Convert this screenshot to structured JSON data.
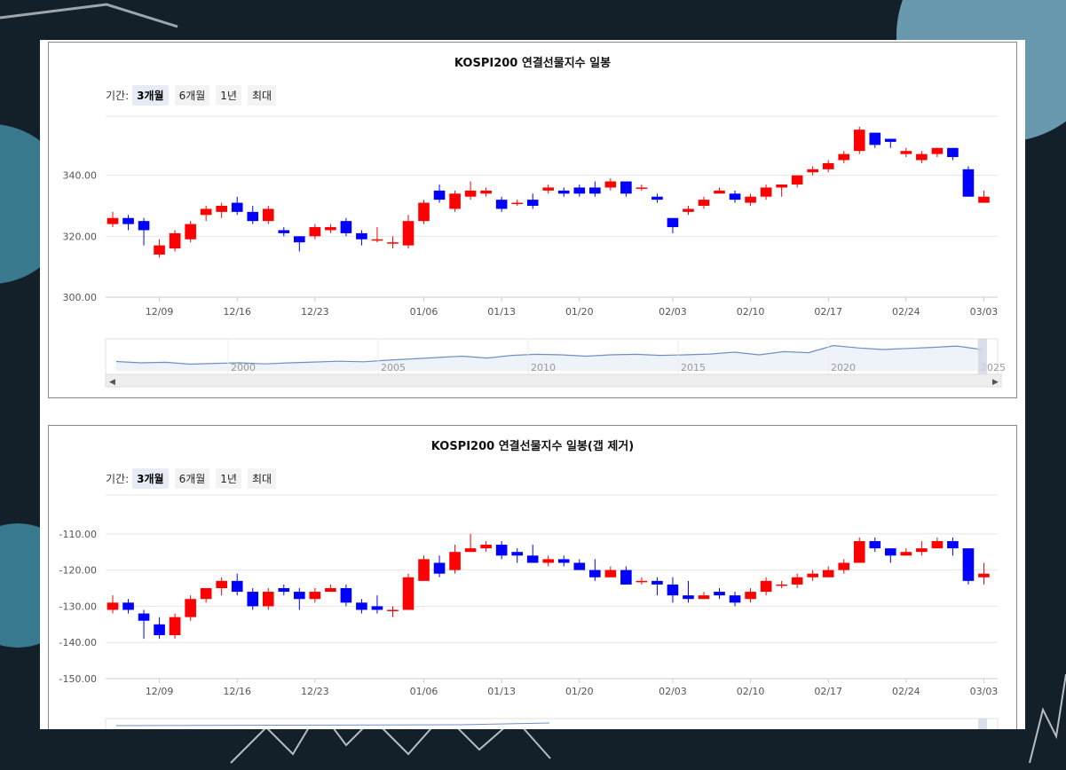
{
  "colors": {
    "up": "#ff0000",
    "down": "#0000ff",
    "grid": "#e6e6e6",
    "axis": "#666666",
    "navigator_line": "#6f8fc4",
    "navigator_fill": "#eef3fa"
  },
  "range_selector": {
    "label": "기간:",
    "buttons": [
      "3개월",
      "6개월",
      "1년",
      "최대"
    ],
    "selected": "3개월"
  },
  "charts": [
    {
      "title": "KOSPI200 연결선물지수 일봉"
    },
    {
      "title": "KOSPI200 연결선물지수 일봉(갭 제거)"
    }
  ],
  "chart_data": [
    {
      "type": "candlestick",
      "title": "KOSPI200 연결선물지수 일봉",
      "y_ticks": [
        "300.00",
        "320.00",
        "340.00"
      ],
      "ylim": [
        300,
        360
      ],
      "x_ticks": [
        "12/09",
        "12/16",
        "12/23",
        "01/06",
        "01/13",
        "01/20",
        "02/03",
        "02/10",
        "02/17",
        "02/24",
        "03/03"
      ],
      "x_tick_index": [
        3,
        8,
        13,
        20,
        25,
        30,
        36,
        41,
        46,
        51,
        56
      ],
      "navigator": {
        "labels": [
          "2000",
          "2005",
          "2010",
          "2015",
          "2020",
          "2025"
        ],
        "series": [
          0.35,
          0.3,
          0.32,
          0.25,
          0.28,
          0.3,
          0.26,
          0.3,
          0.33,
          0.36,
          0.34,
          0.4,
          0.45,
          0.5,
          0.55,
          0.48,
          0.58,
          0.62,
          0.6,
          0.55,
          0.6,
          0.62,
          0.58,
          0.6,
          0.63,
          0.7,
          0.6,
          0.72,
          0.68,
          0.95,
          0.86,
          0.8,
          0.84,
          0.88,
          0.93,
          0.8
        ]
      },
      "candles": [
        [
          324,
          326,
          328,
          323
        ],
        [
          326,
          324,
          327,
          322
        ],
        [
          325,
          322,
          326,
          317
        ],
        [
          314,
          317,
          319,
          313
        ],
        [
          316,
          321,
          322,
          315
        ],
        [
          319,
          324,
          325,
          318
        ],
        [
          327,
          329,
          330,
          325
        ],
        [
          328,
          330,
          331,
          326
        ],
        [
          331,
          328,
          333,
          327
        ],
        [
          328,
          325,
          330,
          324
        ],
        [
          325,
          329,
          330,
          324
        ],
        [
          322,
          321,
          323,
          320
        ],
        [
          320,
          318,
          320,
          315
        ],
        [
          320,
          323,
          324,
          319
        ],
        [
          322,
          323,
          324,
          321
        ],
        [
          325,
          321,
          326,
          320
        ],
        [
          321,
          319,
          322,
          317
        ],
        [
          319,
          319,
          323,
          318
        ],
        [
          318,
          318,
          320,
          316
        ],
        [
          317,
          325,
          327,
          316
        ],
        [
          325,
          331,
          332,
          324
        ],
        [
          335,
          332,
          337,
          331
        ],
        [
          329,
          334,
          335,
          328
        ],
        [
          333,
          335,
          338,
          332
        ],
        [
          334,
          335,
          336,
          333
        ],
        [
          332,
          329,
          333,
          328
        ],
        [
          331,
          331,
          332,
          330
        ],
        [
          332,
          330,
          334,
          329
        ],
        [
          335,
          336,
          337,
          334
        ],
        [
          335,
          334,
          336,
          333
        ],
        [
          336,
          334,
          337,
          333
        ],
        [
          336,
          334,
          338,
          333
        ],
        [
          336,
          338,
          339,
          335
        ],
        [
          338,
          334,
          338,
          333
        ],
        [
          336,
          336,
          337,
          335
        ],
        [
          333,
          332,
          334,
          331
        ],
        [
          326,
          323,
          326,
          321
        ],
        [
          328,
          329,
          330,
          327
        ],
        [
          330,
          332,
          333,
          329
        ],
        [
          334,
          335,
          336,
          334
        ],
        [
          334,
          332,
          335,
          331
        ],
        [
          331,
          333,
          334,
          330
        ],
        [
          333,
          336,
          337,
          332
        ],
        [
          336,
          337,
          337,
          333
        ],
        [
          337,
          340,
          340,
          336
        ],
        [
          341,
          342,
          343,
          340
        ],
        [
          342,
          344,
          345,
          341
        ],
        [
          345,
          347,
          348,
          344
        ],
        [
          348,
          355,
          356,
          347
        ],
        [
          354,
          350,
          354,
          349
        ],
        [
          352,
          351,
          352,
          349
        ],
        [
          347,
          348,
          349,
          346
        ],
        [
          345,
          347,
          348,
          344
        ],
        [
          347,
          349,
          349,
          346
        ],
        [
          349,
          346,
          349,
          345
        ],
        [
          342,
          333,
          343,
          333
        ],
        [
          331,
          333,
          335,
          331
        ]
      ]
    },
    {
      "type": "candlestick",
      "title": "KOSPI200 연결선물지수 일봉(갭 제거)",
      "y_ticks": [
        "-110.00",
        "-120.00",
        "-130.00",
        "-140.00",
        "-150.00"
      ],
      "ylim": [
        -150,
        -100
      ],
      "x_ticks": [
        "12/09",
        "12/16",
        "12/23",
        "01/06",
        "01/13",
        "01/20",
        "02/03",
        "02/10",
        "02/17",
        "02/24",
        "03/03"
      ],
      "x_tick_index": [
        3,
        8,
        13,
        20,
        25,
        30,
        36,
        41,
        46,
        51,
        56
      ],
      "candles": [
        [
          -131,
          -129,
          -127,
          -132
        ],
        [
          -129,
          -131,
          -128,
          -132
        ],
        [
          -132,
          -134,
          -131,
          -139
        ],
        [
          -135,
          -138,
          -133,
          -139
        ],
        [
          -138,
          -133,
          -132,
          -139
        ],
        [
          -133,
          -128,
          -127,
          -134
        ],
        [
          -128,
          -125,
          -125,
          -129
        ],
        [
          -125,
          -123,
          -122,
          -127
        ],
        [
          -123,
          -126,
          -121,
          -127
        ],
        [
          -126,
          -130,
          -125,
          -131
        ],
        [
          -130,
          -126,
          -125,
          -131
        ],
        [
          -125,
          -126,
          -124,
          -127
        ],
        [
          -126,
          -128,
          -125,
          -131
        ],
        [
          -128,
          -126,
          -125,
          -129
        ],
        [
          -126,
          -125,
          -124,
          -126
        ],
        [
          -125,
          -129,
          -124,
          -130
        ],
        [
          -129,
          -131,
          -128,
          -132
        ],
        [
          -130,
          -131,
          -127,
          -132
        ],
        [
          -131,
          -131,
          -130,
          -133
        ],
        [
          -131,
          -122,
          -121,
          -131
        ],
        [
          -123,
          -117,
          -116,
          -123
        ],
        [
          -118,
          -121,
          -116,
          -122
        ],
        [
          -120,
          -115,
          -113,
          -121
        ],
        [
          -115,
          -114,
          -110,
          -115
        ],
        [
          -114,
          -113,
          -112,
          -115
        ],
        [
          -113,
          -116,
          -112,
          -117
        ],
        [
          -115,
          -116,
          -114,
          -118
        ],
        [
          -116,
          -118,
          -113,
          -118
        ],
        [
          -118,
          -117,
          -116,
          -119
        ],
        [
          -117,
          -118,
          -116,
          -119
        ],
        [
          -118,
          -120,
          -117,
          -120
        ],
        [
          -120,
          -122,
          -117,
          -123
        ],
        [
          -122,
          -120,
          -119,
          -121
        ],
        [
          -120,
          -124,
          -119,
          -124
        ],
        [
          -123,
          -123,
          -122,
          -124
        ],
        [
          -123,
          -124,
          -122,
          -127
        ],
        [
          -124,
          -127,
          -122,
          -129
        ],
        [
          -127,
          -128,
          -123,
          -129
        ],
        [
          -128,
          -127,
          -126,
          -128
        ],
        [
          -126,
          -127,
          -125,
          -128
        ],
        [
          -127,
          -129,
          -126,
          -130
        ],
        [
          -128,
          -126,
          -125,
          -129
        ],
        [
          -126,
          -123,
          -122,
          -127
        ],
        [
          -124,
          -124,
          -123,
          -125
        ],
        [
          -124,
          -122,
          -121,
          -125
        ],
        [
          -122,
          -121,
          -120,
          -123
        ],
        [
          -122,
          -120,
          -119,
          -122
        ],
        [
          -120,
          -118,
          -117,
          -121
        ],
        [
          -118,
          -112,
          -111,
          -118
        ],
        [
          -112,
          -114,
          -111,
          -115
        ],
        [
          -114,
          -116,
          -114,
          -118
        ],
        [
          -116,
          -115,
          -114,
          -116
        ],
        [
          -115,
          -114,
          -112,
          -116
        ],
        [
          -114,
          -112,
          -111,
          -114
        ],
        [
          -112,
          -114,
          -111,
          -116
        ],
        [
          -114,
          -123,
          -114,
          -124
        ],
        [
          -122,
          -121,
          -118,
          -124
        ]
      ]
    }
  ]
}
